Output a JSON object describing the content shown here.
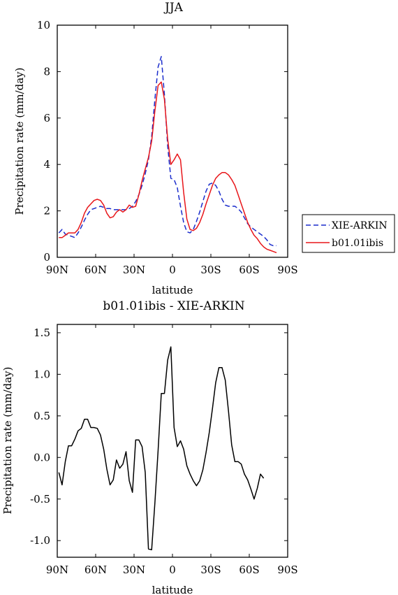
{
  "chart_data": [
    {
      "type": "line",
      "title": "JJA",
      "xlabel": "latitude",
      "ylabel": "Precipitation rate (mm/day)",
      "xlim": [
        90,
        -90
      ],
      "ylim": [
        0,
        10
      ],
      "x_ticks": [
        {
          "v": 90,
          "label": "90N"
        },
        {
          "v": 60,
          "label": "60N"
        },
        {
          "v": 30,
          "label": "30N"
        },
        {
          "v": 0,
          "label": "0"
        },
        {
          "v": -30,
          "label": "30S"
        },
        {
          "v": -60,
          "label": "60S"
        },
        {
          "v": -90,
          "label": "90S"
        }
      ],
      "y_ticks": [
        0,
        2,
        4,
        6,
        8,
        10
      ],
      "legend": "right",
      "series": [
        {
          "name": "XIE-ARKIN",
          "color": "#1a2ccc",
          "dash": "dashed",
          "points": [
            [
              88.75,
              1.05
            ],
            [
              86.25,
              1.2
            ],
            [
              83.75,
              1.0
            ],
            [
              81.25,
              0.95
            ],
            [
              78.75,
              0.9
            ],
            [
              76.25,
              0.85
            ],
            [
              73.75,
              1.05
            ],
            [
              71.25,
              1.3
            ],
            [
              68.75,
              1.6
            ],
            [
              66.25,
              1.85
            ],
            [
              63.75,
              2.05
            ],
            [
              61.25,
              2.1
            ],
            [
              58.75,
              2.15
            ],
            [
              56.25,
              2.2
            ],
            [
              53.75,
              2.15
            ],
            [
              51.25,
              2.1
            ],
            [
              48.75,
              2.1
            ],
            [
              46.25,
              2.05
            ],
            [
              43.75,
              2.05
            ],
            [
              41.25,
              2.05
            ],
            [
              38.75,
              2.05
            ],
            [
              36.25,
              2.05
            ],
            [
              33.75,
              2.1
            ],
            [
              31.25,
              2.2
            ],
            [
              28.75,
              2.4
            ],
            [
              26.25,
              2.7
            ],
            [
              23.75,
              3.1
            ],
            [
              21.25,
              3.6
            ],
            [
              18.75,
              4.2
            ],
            [
              16.25,
              5.2
            ],
            [
              13.75,
              6.8
            ],
            [
              11.25,
              8.2
            ],
            [
              8.75,
              8.65
            ],
            [
              6.25,
              7.0
            ],
            [
              3.75,
              4.8
            ],
            [
              1.25,
              3.4
            ],
            [
              -1.25,
              3.35
            ],
            [
              -3.75,
              3.0
            ],
            [
              -6.25,
              2.2
            ],
            [
              -8.75,
              1.5
            ],
            [
              -11.25,
              1.1
            ],
            [
              -13.75,
              1.05
            ],
            [
              -16.25,
              1.2
            ],
            [
              -18.75,
              1.55
            ],
            [
              -21.25,
              1.95
            ],
            [
              -23.75,
              2.4
            ],
            [
              -26.25,
              2.85
            ],
            [
              -28.75,
              3.15
            ],
            [
              -31.25,
              3.2
            ],
            [
              -33.75,
              3.1
            ],
            [
              -36.25,
              2.85
            ],
            [
              -38.75,
              2.5
            ],
            [
              -41.25,
              2.25
            ],
            [
              -43.75,
              2.2
            ],
            [
              -46.25,
              2.2
            ],
            [
              -48.75,
              2.2
            ],
            [
              -51.25,
              2.1
            ],
            [
              -53.75,
              1.95
            ],
            [
              -56.25,
              1.7
            ],
            [
              -58.75,
              1.45
            ],
            [
              -61.25,
              1.3
            ],
            [
              -63.75,
              1.2
            ],
            [
              -66.25,
              1.1
            ],
            [
              -68.75,
              1.0
            ],
            [
              -71.25,
              0.9
            ],
            [
              -73.75,
              0.75
            ],
            [
              -76.25,
              0.55
            ],
            [
              -78.75,
              0.5
            ],
            [
              -81.25,
              0.5
            ]
          ]
        },
        {
          "name": "b01.01ibis",
          "color": "#e8161a",
          "dash": "solid",
          "points": [
            [
              88.75,
              0.85
            ],
            [
              86.25,
              0.85
            ],
            [
              83.75,
              0.95
            ],
            [
              81.25,
              1.05
            ],
            [
              78.75,
              1.05
            ],
            [
              76.25,
              1.05
            ],
            [
              73.75,
              1.2
            ],
            [
              71.25,
              1.5
            ],
            [
              68.75,
              1.9
            ],
            [
              66.25,
              2.15
            ],
            [
              63.75,
              2.3
            ],
            [
              61.25,
              2.45
            ],
            [
              58.75,
              2.5
            ],
            [
              56.25,
              2.45
            ],
            [
              53.75,
              2.25
            ],
            [
              51.25,
              1.9
            ],
            [
              48.75,
              1.7
            ],
            [
              46.25,
              1.75
            ],
            [
              43.75,
              1.95
            ],
            [
              41.25,
              2.05
            ],
            [
              38.75,
              1.95
            ],
            [
              36.25,
              2.05
            ],
            [
              33.75,
              2.25
            ],
            [
              31.25,
              2.15
            ],
            [
              28.75,
              2.2
            ],
            [
              26.25,
              2.7
            ],
            [
              23.75,
              3.3
            ],
            [
              21.25,
              3.8
            ],
            [
              18.75,
              4.3
            ],
            [
              16.25,
              5.0
            ],
            [
              13.75,
              6.3
            ],
            [
              11.25,
              7.4
            ],
            [
              8.75,
              7.55
            ],
            [
              6.25,
              6.8
            ],
            [
              3.75,
              5.1
            ],
            [
              1.25,
              4.0
            ],
            [
              -1.25,
              4.2
            ],
            [
              -3.75,
              4.45
            ],
            [
              -6.25,
              4.2
            ],
            [
              -8.75,
              2.8
            ],
            [
              -11.25,
              1.65
            ],
            [
              -13.75,
              1.2
            ],
            [
              -16.25,
              1.15
            ],
            [
              -18.75,
              1.25
            ],
            [
              -21.25,
              1.5
            ],
            [
              -23.75,
              1.85
            ],
            [
              -26.25,
              2.3
            ],
            [
              -28.75,
              2.7
            ],
            [
              -31.25,
              3.1
            ],
            [
              -33.75,
              3.4
            ],
            [
              -36.25,
              3.55
            ],
            [
              -38.75,
              3.65
            ],
            [
              -41.25,
              3.65
            ],
            [
              -43.75,
              3.55
            ],
            [
              -46.25,
              3.35
            ],
            [
              -48.75,
              3.1
            ],
            [
              -51.25,
              2.7
            ],
            [
              -53.75,
              2.3
            ],
            [
              -56.25,
              1.9
            ],
            [
              -58.75,
              1.5
            ],
            [
              -61.25,
              1.2
            ],
            [
              -63.75,
              0.95
            ],
            [
              -66.25,
              0.8
            ],
            [
              -68.75,
              0.6
            ],
            [
              -71.25,
              0.45
            ],
            [
              -73.75,
              0.35
            ],
            [
              -76.25,
              0.3
            ],
            [
              -78.75,
              0.25
            ],
            [
              -81.25,
              0.2
            ]
          ]
        }
      ]
    },
    {
      "type": "line",
      "title": "b01.01ibis - XIE-ARKIN",
      "xlabel": "latitude",
      "ylabel": "Precipitation rate (mm/day)",
      "xlim": [
        90,
        -90
      ],
      "ylim": [
        -1.2,
        1.6
      ],
      "x_ticks": [
        {
          "v": 90,
          "label": "90N"
        },
        {
          "v": 60,
          "label": "60N"
        },
        {
          "v": 30,
          "label": "30N"
        },
        {
          "v": 0,
          "label": "0"
        },
        {
          "v": -30,
          "label": "30S"
        },
        {
          "v": -60,
          "label": "60S"
        },
        {
          "v": -90,
          "label": "90S"
        }
      ],
      "y_ticks": [
        {
          "v": 1.5,
          "label": "1.5"
        },
        {
          "v": 1.0,
          "label": "1.0"
        },
        {
          "v": 0.5,
          "label": "0.5"
        },
        {
          "v": 0.0,
          "label": "0.0"
        },
        {
          "v": -0.5,
          "label": "-0.5"
        },
        {
          "v": -1.0,
          "label": "-1.0"
        }
      ],
      "series": [
        {
          "color": "#000000",
          "dash": "solid",
          "points": [
            [
              88.75,
              -0.18
            ],
            [
              86.25,
              -0.33
            ],
            [
              83.75,
              -0.05
            ],
            [
              81.25,
              0.14
            ],
            [
              78.75,
              0.14
            ],
            [
              76.25,
              0.22
            ],
            [
              73.75,
              0.32
            ],
            [
              71.25,
              0.35
            ],
            [
              68.75,
              0.46
            ],
            [
              66.25,
              0.46
            ],
            [
              63.75,
              0.36
            ],
            [
              61.25,
              0.36
            ],
            [
              58.75,
              0.35
            ],
            [
              56.25,
              0.27
            ],
            [
              53.75,
              0.1
            ],
            [
              51.25,
              -0.14
            ],
            [
              48.75,
              -0.33
            ],
            [
              46.25,
              -0.27
            ],
            [
              43.75,
              -0.03
            ],
            [
              41.25,
              -0.13
            ],
            [
              38.75,
              -0.08
            ],
            [
              36.25,
              0.07
            ],
            [
              33.75,
              -0.28
            ],
            [
              31.25,
              -0.42
            ],
            [
              28.75,
              0.21
            ],
            [
              26.25,
              0.21
            ],
            [
              23.75,
              0.13
            ],
            [
              21.25,
              -0.18
            ],
            [
              18.75,
              -1.1
            ],
            [
              16.25,
              -1.11
            ],
            [
              13.75,
              -0.55
            ],
            [
              11.25,
              0.08
            ],
            [
              8.75,
              0.77
            ],
            [
              6.25,
              0.77
            ],
            [
              3.75,
              1.17
            ],
            [
              1.25,
              1.33
            ],
            [
              -1.25,
              0.36
            ],
            [
              -3.75,
              0.13
            ],
            [
              -6.25,
              0.2
            ],
            [
              -8.75,
              0.1
            ],
            [
              -11.25,
              -0.1
            ],
            [
              -13.75,
              -0.2
            ],
            [
              -16.25,
              -0.28
            ],
            [
              -18.75,
              -0.34
            ],
            [
              -21.25,
              -0.28
            ],
            [
              -23.75,
              -0.15
            ],
            [
              -26.25,
              0.06
            ],
            [
              -28.75,
              0.3
            ],
            [
              -31.25,
              0.59
            ],
            [
              -33.75,
              0.9
            ],
            [
              -36.25,
              1.08
            ],
            [
              -38.75,
              1.08
            ],
            [
              -41.25,
              0.93
            ],
            [
              -43.75,
              0.56
            ],
            [
              -46.25,
              0.15
            ],
            [
              -48.75,
              -0.05
            ],
            [
              -51.25,
              -0.05
            ],
            [
              -53.75,
              -0.08
            ],
            [
              -56.25,
              -0.2
            ],
            [
              -58.75,
              -0.27
            ],
            [
              -61.25,
              -0.38
            ],
            [
              -63.75,
              -0.5
            ],
            [
              -66.25,
              -0.37
            ],
            [
              -68.75,
              -0.2
            ],
            [
              -71.25,
              -0.25
            ]
          ]
        }
      ]
    }
  ]
}
